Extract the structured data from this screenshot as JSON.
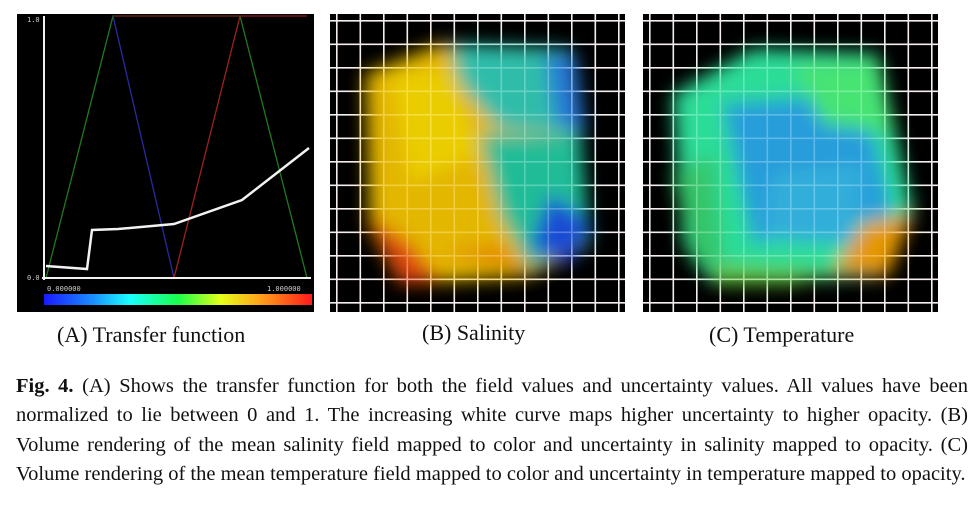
{
  "panels": {
    "a": {
      "caption": "(A) Transfer function",
      "axis_y_top": "1.0",
      "axis_y_bottom": "0.0",
      "colorbar_min": "0.000000",
      "colorbar_max": "1.000000"
    },
    "b": {
      "caption": "(B) Salinity"
    },
    "c": {
      "caption": "(C) Temperature"
    }
  },
  "figure_caption": {
    "label": "Fig. 4.",
    "text": "(A) Shows the transfer function for both the field values and uncertainty values. All values have been normalized to lie between 0 and 1. The increasing white curve maps higher uncertainty to higher opacity. (B) Volume rendering of the mean salinity field mapped to color and uncertainty in salinity mapped to opacity. (C) Volume rendering of the mean temperature field mapped to color and uncertainty in temperature mapped to opacity."
  },
  "colors": {
    "background_dark": "#000000",
    "green_line": "#1f7a1f",
    "blue_line": "#1a1a8c",
    "red_line": "#8c1a1a",
    "white_curve": "#f2f2f2"
  }
}
